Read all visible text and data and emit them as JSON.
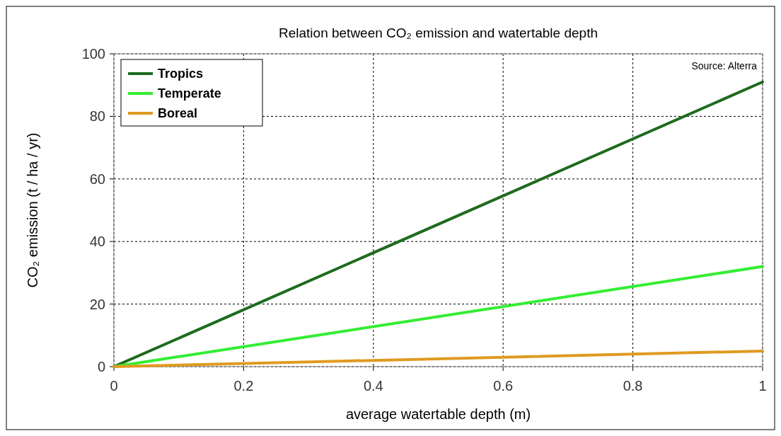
{
  "chart_data": {
    "type": "line",
    "title": "Relation between CO₂ emission and watertable depth",
    "xlabel": "average watertable depth (m)",
    "ylabel": "CO₂ emission (t / ha / yr)",
    "annotations": [
      "Source: Alterra"
    ],
    "x": [
      0,
      1
    ],
    "series": [
      {
        "name": "Tropics",
        "color": "#1e6b1e",
        "values": [
          0,
          91
        ]
      },
      {
        "name": "Temperate",
        "color": "#33ee33",
        "values": [
          0,
          32
        ]
      },
      {
        "name": "Boreal",
        "color": "#e09a20",
        "values": [
          0,
          5
        ]
      }
    ],
    "xlim": [
      0,
      1
    ],
    "xticks": [
      0,
      0.2,
      0.4,
      0.6,
      0.8,
      1
    ],
    "ylim": [
      0,
      100
    ],
    "yticks": [
      0,
      20,
      40,
      60,
      80,
      100
    ],
    "grid": true,
    "legend": "top left",
    "marker": "none",
    "line_style": "solid"
  }
}
